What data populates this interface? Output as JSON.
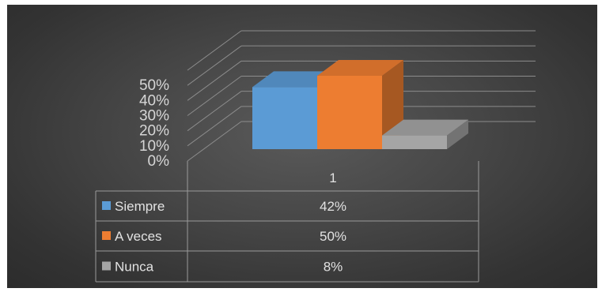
{
  "chart_data": {
    "type": "bar",
    "title": "",
    "xlabel": "",
    "ylabel": "",
    "categories": [
      "1"
    ],
    "series": [
      {
        "name": "Siempre",
        "values": [
          42
        ],
        "label": "42%",
        "color": "#5b9bd5"
      },
      {
        "name": "A veces",
        "values": [
          50
        ],
        "label": "50%",
        "color": "#ed7d31"
      },
      {
        "name": "Nunca",
        "values": [
          8
        ],
        "label": "8%",
        "color": "#a5a5a5"
      }
    ],
    "yticks": [
      "0%",
      "10%",
      "20%",
      "30%",
      "40%",
      "50%"
    ],
    "ylim": [
      0,
      60
    ],
    "grid": true,
    "legend": "data-table",
    "style": "3d-column"
  }
}
